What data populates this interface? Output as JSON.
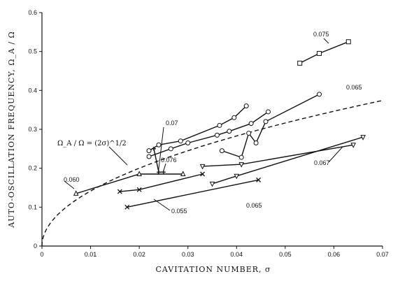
{
  "chart_data": {
    "type": "line",
    "xlabel": "CAVITATION NUMBER, σ",
    "ylabel": "AUTO-OSCILLATION FREQUENCY, Ω_A / Ω",
    "xlim": [
      0,
      0.07
    ],
    "ylim": [
      0,
      0.6
    ],
    "x_ticks": [
      "0",
      "0.01",
      "0.02",
      "0.03",
      "0.04",
      "0.05",
      "0.06",
      "0.07"
    ],
    "y_ticks": [
      "0",
      "0.1",
      "0.2",
      "0.3",
      "0.4",
      "0.5",
      "0.6"
    ],
    "grid": false,
    "theory_curve": {
      "label": "Ω_A / Ω = (2σ)^1/2",
      "style": "dashed",
      "function": "sqrt(2*sigma)"
    },
    "series": [
      {
        "name": "0.075",
        "marker": "square",
        "x": [
          0.053,
          0.057,
          0.063
        ],
        "y": [
          0.47,
          0.495,
          0.525
        ]
      },
      {
        "name": "0.065",
        "marker": "circle",
        "x": [
          0.037,
          0.041,
          0.0425,
          0.044,
          0.046,
          0.057
        ],
        "y": [
          0.245,
          0.228,
          0.29,
          0.265,
          0.32,
          0.39
        ]
      },
      {
        "name": "0.07",
        "marker": "circle",
        "x": [
          0.022,
          0.024,
          0.0285,
          0.0365,
          0.0395,
          0.042
        ],
        "y": [
          0.245,
          0.26,
          0.27,
          0.31,
          0.33,
          0.36
        ]
      },
      {
        "name": "",
        "marker": "circle",
        "x": [
          0.022,
          0.0265,
          0.03,
          0.036,
          0.0385,
          0.043,
          0.0465
        ],
        "y": [
          0.23,
          0.25,
          0.265,
          0.285,
          0.295,
          0.315,
          0.345
        ]
      },
      {
        "name": "0.076",
        "marker": "plus",
        "x": [
          0.023,
          0.024,
          0.025
        ],
        "y": [
          0.25,
          0.19,
          0.19
        ]
      },
      {
        "name": "0.060",
        "marker": "triangle",
        "x": [
          0.007,
          0.02,
          0.029
        ],
        "y": [
          0.135,
          0.185,
          0.185
        ]
      },
      {
        "name": "0.067",
        "marker": "triangle-down",
        "x": [
          0.033,
          0.041,
          0.064
        ],
        "y": [
          0.205,
          0.21,
          0.26
        ]
      },
      {
        "name": "0.055",
        "marker": "cross",
        "x": [
          0.016,
          0.02,
          0.033
        ],
        "y": [
          0.14,
          0.145,
          0.185
        ]
      },
      {
        "name": "0.065",
        "marker": "triangle-down",
        "x": [
          0.035,
          0.04,
          0.066
        ],
        "y": [
          0.16,
          0.18,
          0.28
        ]
      },
      {
        "name": "",
        "marker": "cross",
        "x": [
          0.0175,
          0.0445
        ],
        "y": [
          0.1,
          0.17
        ]
      }
    ],
    "annotations": [
      "0.075",
      "0.065",
      "0.07",
      "0.076",
      "0.060",
      "0.067",
      "0.055",
      "0.065"
    ]
  }
}
